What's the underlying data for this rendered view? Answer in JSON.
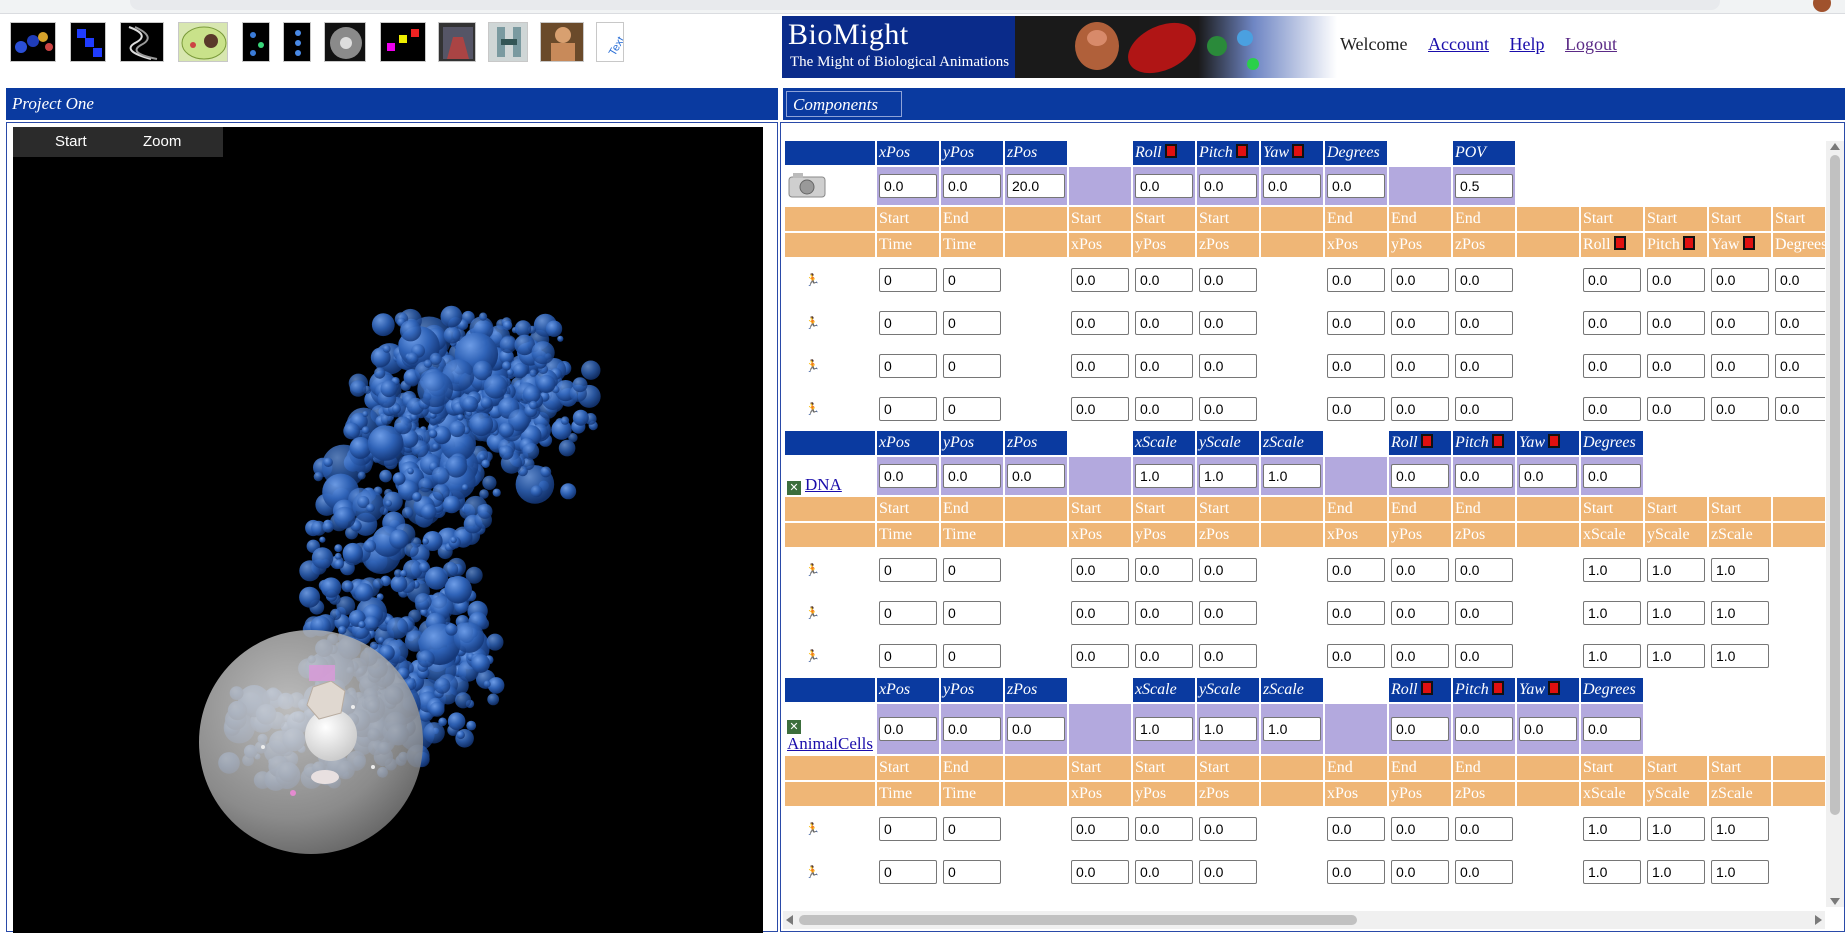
{
  "toolbar_icons": [
    "molecules-icon",
    "chain-icon",
    "helix-icon",
    "cell-icon",
    "particles-icon",
    "dots-icon",
    "sphere-icon",
    "blocks-icon",
    "figure-icon",
    "skeleton-icon",
    "person-icon",
    "text-icon"
  ],
  "banner": {
    "title": "BioMight",
    "subtitle": "The Might of Biological Animations"
  },
  "account": {
    "welcome": "Welcome",
    "account_link": "Account",
    "help_link": "Help",
    "logout_link": "Logout"
  },
  "left_panel": {
    "title": "Project One",
    "viewport_buttons": [
      "Start",
      "Zoom"
    ]
  },
  "right_panel": {
    "title": "Components"
  },
  "camera": {
    "headers": [
      "xPos",
      "yPos",
      "zPos",
      "",
      "Roll",
      "Pitch",
      "Yaw",
      "Degrees",
      "",
      "POV"
    ],
    "values": [
      "0.0",
      "0.0",
      "20.0",
      "",
      "0.0",
      "0.0",
      "0.0",
      "0.0",
      "",
      "0.5"
    ],
    "key_header_top": [
      "Start",
      "End",
      "",
      "Start",
      "Start",
      "Start",
      "",
      "End",
      "End",
      "End",
      "",
      "Start",
      "Start",
      "Start",
      "Start"
    ],
    "key_header_bottom": [
      "Time",
      "Time",
      "",
      "xPos",
      "yPos",
      "zPos",
      "",
      "xPos",
      "yPos",
      "zPos",
      "",
      "Roll",
      "Pitch",
      "Yaw",
      "Degrees"
    ],
    "keyframes": [
      [
        "0",
        "0",
        "",
        "0.0",
        "0.0",
        "0.0",
        "",
        "0.0",
        "0.0",
        "0.0",
        "",
        "0.0",
        "0.0",
        "0.0",
        "0.0"
      ],
      [
        "0",
        "0",
        "",
        "0.0",
        "0.0",
        "0.0",
        "",
        "0.0",
        "0.0",
        "0.0",
        "",
        "0.0",
        "0.0",
        "0.0",
        "0.0"
      ],
      [
        "0",
        "0",
        "",
        "0.0",
        "0.0",
        "0.0",
        "",
        "0.0",
        "0.0",
        "0.0",
        "",
        "0.0",
        "0.0",
        "0.0",
        "0.0"
      ],
      [
        "0",
        "0",
        "",
        "0.0",
        "0.0",
        "0.0",
        "",
        "0.0",
        "0.0",
        "0.0",
        "",
        "0.0",
        "0.0",
        "0.0",
        "0.0"
      ]
    ]
  },
  "components": [
    {
      "name": "DNA",
      "headers": [
        "xPos",
        "yPos",
        "zPos",
        "",
        "xScale",
        "yScale",
        "zScale",
        "",
        "Roll",
        "Pitch",
        "Yaw",
        "Degrees"
      ],
      "values": [
        "0.0",
        "0.0",
        "0.0",
        "",
        "1.0",
        "1.0",
        "1.0",
        "",
        "0.0",
        "0.0",
        "0.0",
        "0.0"
      ],
      "key_header_top": [
        "Start",
        "End",
        "",
        "Start",
        "Start",
        "Start",
        "",
        "End",
        "End",
        "End",
        "",
        "Start",
        "Start",
        "Start",
        ""
      ],
      "key_header_bottom": [
        "Time",
        "Time",
        "",
        "xPos",
        "yPos",
        "zPos",
        "",
        "xPos",
        "yPos",
        "zPos",
        "",
        "xScale",
        "yScale",
        "zScale",
        ""
      ],
      "keyframes": [
        [
          "0",
          "0",
          "",
          "0.0",
          "0.0",
          "0.0",
          "",
          "0.0",
          "0.0",
          "0.0",
          "",
          "1.0",
          "1.0",
          "1.0"
        ],
        [
          "0",
          "0",
          "",
          "0.0",
          "0.0",
          "0.0",
          "",
          "0.0",
          "0.0",
          "0.0",
          "",
          "1.0",
          "1.0",
          "1.0"
        ],
        [
          "0",
          "0",
          "",
          "0.0",
          "0.0",
          "0.0",
          "",
          "0.0",
          "0.0",
          "0.0",
          "",
          "1.0",
          "1.0",
          "1.0"
        ]
      ]
    },
    {
      "name": "AnimalCells",
      "headers": [
        "xPos",
        "yPos",
        "zPos",
        "",
        "xScale",
        "yScale",
        "zScale",
        "",
        "Roll",
        "Pitch",
        "Yaw",
        "Degrees"
      ],
      "values": [
        "0.0",
        "0.0",
        "0.0",
        "",
        "1.0",
        "1.0",
        "1.0",
        "",
        "0.0",
        "0.0",
        "0.0",
        "0.0"
      ],
      "key_header_top": [
        "Start",
        "End",
        "",
        "Start",
        "Start",
        "Start",
        "",
        "End",
        "End",
        "End",
        "",
        "Start",
        "Start",
        "Start",
        ""
      ],
      "key_header_bottom": [
        "Time",
        "Time",
        "",
        "xPos",
        "yPos",
        "zPos",
        "",
        "xPos",
        "yPos",
        "zPos",
        "",
        "xScale",
        "yScale",
        "zScale",
        ""
      ],
      "keyframes": [
        [
          "0",
          "0",
          "",
          "0.0",
          "0.0",
          "0.0",
          "",
          "0.0",
          "0.0",
          "0.0",
          "",
          "1.0",
          "1.0",
          "1.0"
        ],
        [
          "0",
          "0",
          "",
          "0.0",
          "0.0",
          "0.0",
          "",
          "0.0",
          "0.0",
          "0.0",
          "",
          "1.0",
          "1.0",
          "1.0"
        ]
      ]
    }
  ]
}
